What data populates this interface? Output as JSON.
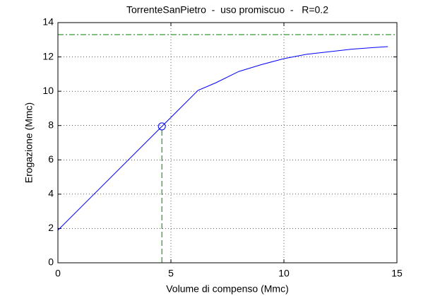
{
  "chart_data": {
    "type": "line",
    "title": "TorrenteSanPietro  -  uso promiscuo  -   R=0.2",
    "xlabel": "Volume di compenso (Mmc)",
    "ylabel": "Erogazione (Mmc)",
    "series": [
      {
        "color": "#0000ff",
        "x": [
          0,
          6.2,
          7,
          8,
          9,
          10,
          11,
          12,
          13,
          14,
          14.6
        ],
        "values": [
          1.9,
          10.05,
          10.5,
          11.15,
          11.55,
          11.9,
          12.15,
          12.3,
          12.45,
          12.55,
          12.6
        ]
      }
    ],
    "marker": {
      "x": 4.6,
      "y": 7.95,
      "color": "#0000ff"
    },
    "hline": 13.3,
    "reference_color": "#008000",
    "xlim": [
      0,
      15
    ],
    "xticks": [
      0,
      5,
      10,
      15
    ],
    "ylim": [
      0,
      14
    ],
    "yticks": [
      0,
      2,
      4,
      6,
      8,
      10,
      12,
      14
    ],
    "grid": true
  }
}
